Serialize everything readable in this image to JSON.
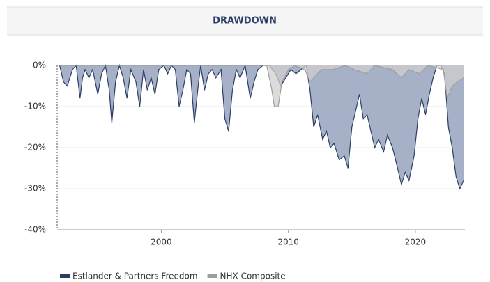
{
  "chart_data": {
    "type": "area",
    "title": "DRAWDOWN",
    "xlim": [
      1991.8,
      2023.9
    ],
    "xticks": [
      2000,
      2010,
      2020
    ],
    "ylim": [
      -40,
      0
    ],
    "yticks": [
      {
        "value": 0,
        "label": "0%"
      },
      {
        "value": -10,
        "label": "-10%"
      },
      {
        "value": -20,
        "label": "-20%"
      },
      {
        "value": -30,
        "label": "-30%"
      },
      {
        "value": -40,
        "label": "-40%"
      }
    ],
    "grid": true,
    "legend": "bottom",
    "series": [
      {
        "name": "Estlander & Partners Freedom",
        "color": "#2c3e66",
        "fill": "#a6b0c6",
        "x": [
          1992.0,
          1992.3,
          1992.6,
          1993.0,
          1993.3,
          1993.6,
          1993.8,
          1994.0,
          1994.3,
          1994.6,
          1995.0,
          1995.3,
          1995.6,
          1995.9,
          1996.1,
          1996.4,
          1996.7,
          1997.0,
          1997.3,
          1997.6,
          1998.0,
          1998.3,
          1998.6,
          1998.9,
          1999.2,
          1999.5,
          1999.8,
          2000.2,
          2000.5,
          2000.8,
          2001.1,
          2001.4,
          2001.7,
          2002.0,
          2002.3,
          2002.6,
          2002.9,
          2003.1,
          2003.4,
          2003.7,
          2004.0,
          2004.3,
          2004.7,
          2005.0,
          2005.3,
          2005.6,
          2005.9,
          2006.2,
          2006.6,
          2007.0,
          2007.3,
          2007.6,
          2008.0,
          2008.5,
          2009.0,
          2009.4,
          2009.8,
          2010.2,
          2010.6,
          2011.0,
          2011.4,
          2011.7,
          2012.0,
          2012.3,
          2012.7,
          2013.0,
          2013.3,
          2013.6,
          2014.0,
          2014.4,
          2014.7,
          2015.0,
          2015.3,
          2015.6,
          2015.9,
          2016.2,
          2016.5,
          2016.8,
          2017.1,
          2017.5,
          2017.8,
          2018.2,
          2018.6,
          2018.9,
          2019.2,
          2019.5,
          2019.9,
          2020.2,
          2020.5,
          2020.8,
          2021.1,
          2021.4,
          2021.7,
          2022.0,
          2022.3,
          2022.6,
          2022.9,
          2023.2,
          2023.5,
          2023.8
        ],
        "values": [
          0,
          -4,
          -5,
          -1,
          0,
          -8,
          -3,
          -1,
          -3,
          -1,
          -7,
          -2,
          0,
          -6,
          -14,
          -4,
          0,
          -3,
          -8,
          -1,
          -4,
          -10,
          -1,
          -6,
          -3,
          -7,
          -1,
          0,
          -2,
          0,
          -1,
          -10,
          -6,
          -1,
          -2,
          -14,
          -5,
          0,
          -6,
          -2,
          -1,
          -3,
          -1,
          -13,
          -16,
          -6,
          -1,
          -3,
          0,
          -8,
          -4,
          -1,
          0,
          0,
          -2,
          -5,
          -3,
          -1,
          -2,
          -1,
          0,
          -6,
          -15,
          -12,
          -18,
          -16,
          -20,
          -19,
          -23,
          -22,
          -25,
          -15,
          -11,
          -7,
          -13,
          -12,
          -16,
          -20,
          -18,
          -21,
          -17,
          -20,
          -25,
          -29,
          -26,
          -28,
          -22,
          -13,
          -8,
          -12,
          -7,
          -3,
          0,
          0,
          -2,
          -15,
          -20,
          -27,
          -30,
          -28
        ]
      },
      {
        "name": "NHX Composite",
        "color": "#9e9e9e",
        "fill": "#cfcfcf",
        "x": [
          1992.0,
          2008.3,
          2008.7,
          2008.9,
          2009.2,
          2009.5,
          2010.0,
          2010.5,
          2011.3,
          2011.7,
          2012.0,
          2012.6,
          2013.5,
          2014.5,
          2015.2,
          2016.2,
          2016.8,
          2018.2,
          2018.9,
          2019.5,
          2020.3,
          2021.0,
          2022.2,
          2022.5,
          2022.9,
          2023.3,
          2023.8
        ],
        "values": [
          0,
          0,
          -6,
          -10,
          -10,
          -4,
          -1,
          0,
          -1,
          -4,
          -3,
          -1,
          -1,
          0,
          -1,
          -2,
          0,
          -1,
          -3,
          -1,
          -2,
          0,
          -1,
          -8,
          -5,
          -4,
          -3
        ]
      }
    ]
  }
}
